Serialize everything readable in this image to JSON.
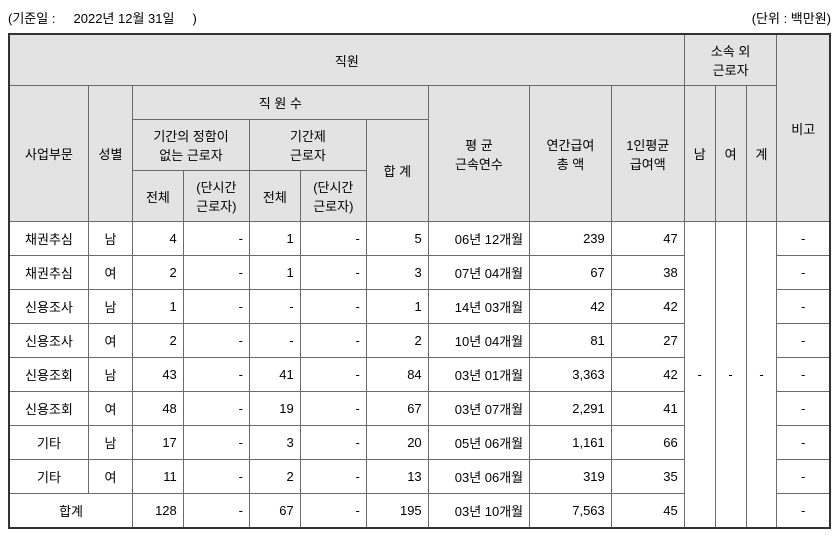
{
  "meta": {
    "asof_label": "(기준일 :",
    "asof_date": "2022년 12월 31일",
    "asof_close": ")",
    "unit": "(단위 : 백만원)"
  },
  "headers": {
    "employees": "직원",
    "external": "소속 외\n근로자",
    "dept": "사업부문",
    "gender": "성별",
    "headcount": "직 원 수",
    "regular": "기간의 정함이\n없는 근로자",
    "fixed": "기간제\n근로자",
    "sum": "합 계",
    "all": "전체",
    "parttime": "(단시간\n근로자)",
    "tenure": "평 균\n근속연수",
    "annual_total": "연간급여\n총 액",
    "avg_pay": "1인평균\n급여액",
    "male": "남",
    "female": "여",
    "total_col": "계",
    "note": "비고",
    "total_row": "합계"
  },
  "rows": [
    {
      "dept": "채권추심",
      "gender": "남",
      "reg_all": "4",
      "reg_pt": "-",
      "fix_all": "1",
      "fix_pt": "-",
      "sum": "5",
      "tenure": "06년 12개월",
      "annual": "239",
      "avg": "47",
      "note": "-"
    },
    {
      "dept": "채권추심",
      "gender": "여",
      "reg_all": "2",
      "reg_pt": "-",
      "fix_all": "1",
      "fix_pt": "-",
      "sum": "3",
      "tenure": "07년 04개월",
      "annual": "67",
      "avg": "38",
      "note": "-"
    },
    {
      "dept": "신용조사",
      "gender": "남",
      "reg_all": "1",
      "reg_pt": "-",
      "fix_all": "-",
      "fix_pt": "-",
      "sum": "1",
      "tenure": "14년 03개월",
      "annual": "42",
      "avg": "42",
      "note": "-"
    },
    {
      "dept": "신용조사",
      "gender": "여",
      "reg_all": "2",
      "reg_pt": "-",
      "fix_all": "-",
      "fix_pt": "-",
      "sum": "2",
      "tenure": "10년 04개월",
      "annual": "81",
      "avg": "27",
      "note": "-"
    },
    {
      "dept": "신용조회",
      "gender": "남",
      "reg_all": "43",
      "reg_pt": "-",
      "fix_all": "41",
      "fix_pt": "-",
      "sum": "84",
      "tenure": "03년 01개월",
      "annual": "3,363",
      "avg": "42",
      "note": "-"
    },
    {
      "dept": "신용조회",
      "gender": "여",
      "reg_all": "48",
      "reg_pt": "-",
      "fix_all": "19",
      "fix_pt": "-",
      "sum": "67",
      "tenure": "03년 07개월",
      "annual": "2,291",
      "avg": "41",
      "note": "-"
    },
    {
      "dept": "기타",
      "gender": "남",
      "reg_all": "17",
      "reg_pt": "-",
      "fix_all": "3",
      "fix_pt": "-",
      "sum": "20",
      "tenure": "05년 06개월",
      "annual": "1,161",
      "avg": "66",
      "note": "-"
    },
    {
      "dept": "기타",
      "gender": "여",
      "reg_all": "11",
      "reg_pt": "-",
      "fix_all": "2",
      "fix_pt": "-",
      "sum": "13",
      "tenure": "03년 06개월",
      "annual": "319",
      "avg": "35",
      "note": "-"
    }
  ],
  "external_cells": {
    "male": "-",
    "female": "-",
    "total": "-"
  },
  "total": {
    "reg_all": "128",
    "reg_pt": "-",
    "fix_all": "67",
    "fix_pt": "-",
    "sum": "195",
    "tenure": "03년 10개월",
    "annual": "7,563",
    "avg": "45",
    "note": "-"
  }
}
